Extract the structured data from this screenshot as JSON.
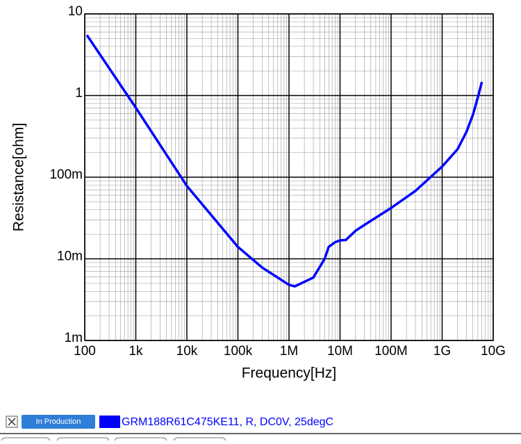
{
  "chart_data": {
    "type": "line",
    "x_label": "Frequency[Hz]",
    "y_label": "Resistance[ohm]",
    "x": [
      110,
      1000,
      10000,
      100000,
      300000,
      1000000,
      1300000,
      3000000,
      5000000,
      6000000,
      8000000,
      10000000,
      13000000,
      20000000,
      30000000,
      100000000,
      300000000,
      1000000000,
      2000000000,
      3000000000,
      4000000000,
      5000000000,
      6000000000
    ],
    "series": [
      {
        "name": "GRM188R61C475KE11, R, DC0V, 25degC",
        "color": "#0000ff",
        "values": [
          5.5,
          0.71,
          0.078,
          0.014,
          0.0078,
          0.0048,
          0.0046,
          0.0059,
          0.01,
          0.014,
          0.016,
          0.0168,
          0.017,
          0.022,
          0.026,
          0.042,
          0.068,
          0.135,
          0.22,
          0.36,
          0.58,
          0.95,
          1.47
        ]
      }
    ],
    "xlim": [
      100,
      10000000000
    ],
    "ylim": [
      0.001,
      10
    ],
    "xticks": [
      100,
      {
        "value": 1000,
        "label": "1k"
      },
      {
        "value": 10000,
        "label": "10k"
      },
      {
        "value": 100000,
        "label": "100k"
      },
      {
        "value": 1000000,
        "label": "1M"
      },
      {
        "value": 10000000,
        "label": "10M"
      },
      {
        "value": 100000000,
        "label": "100M"
      },
      {
        "value": 1000000000,
        "label": "1G"
      },
      {
        "value": 10000000000,
        "label": "10G"
      }
    ],
    "yticks": [
      {
        "value": 0.001,
        "label": "1m"
      },
      {
        "value": 0.01,
        "label": "10m"
      },
      {
        "value": 0.1,
        "label": "100m"
      },
      1,
      10
    ],
    "log_x": true,
    "log_y": true,
    "grid": true,
    "minor_grid": true,
    "status_badge": "In Production"
  }
}
